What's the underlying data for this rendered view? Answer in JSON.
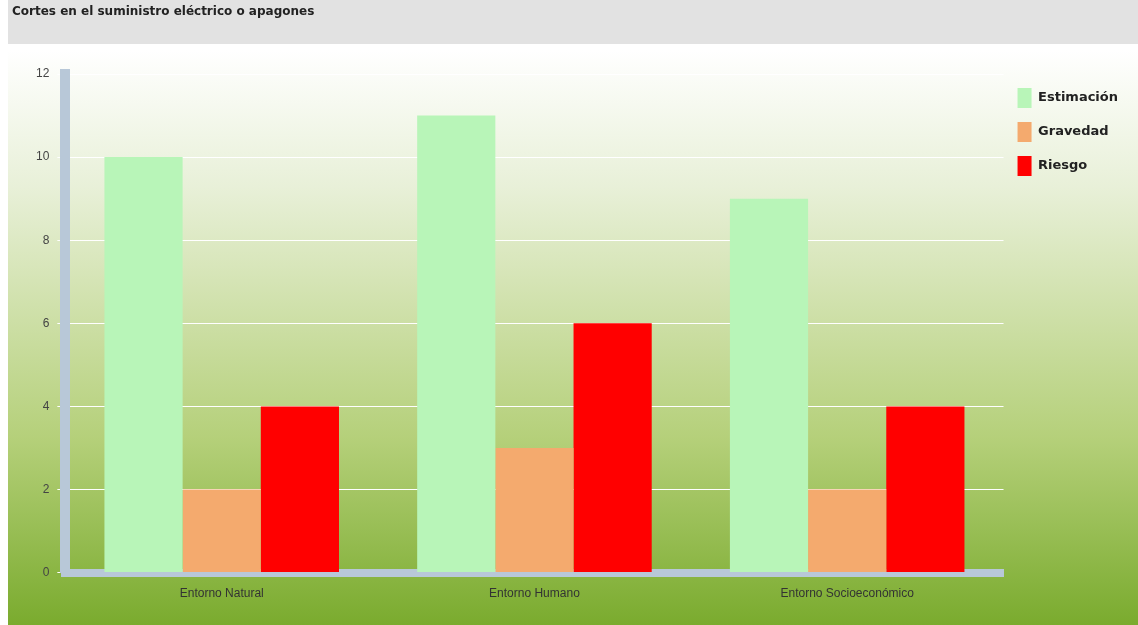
{
  "chart_data": {
    "type": "bar",
    "title": "Cortes en el suministro eléctrico o apagones",
    "categories": [
      "Entorno Natural",
      "Entorno Humano",
      "Entorno Socioeconómico"
    ],
    "series": [
      {
        "name": "Estimación",
        "color": "#b8f5b8",
        "values": [
          10,
          11,
          9
        ]
      },
      {
        "name": "Gravedad",
        "color": "#f4aa6e",
        "values": [
          2,
          3,
          2
        ]
      },
      {
        "name": "Riesgo",
        "color": "#ff0000",
        "values": [
          4,
          6,
          4
        ]
      }
    ],
    "ylim": [
      0,
      12
    ],
    "yticks": [
      0,
      2,
      4,
      6,
      8,
      10,
      12
    ],
    "grid": "y",
    "legend": "top right"
  }
}
